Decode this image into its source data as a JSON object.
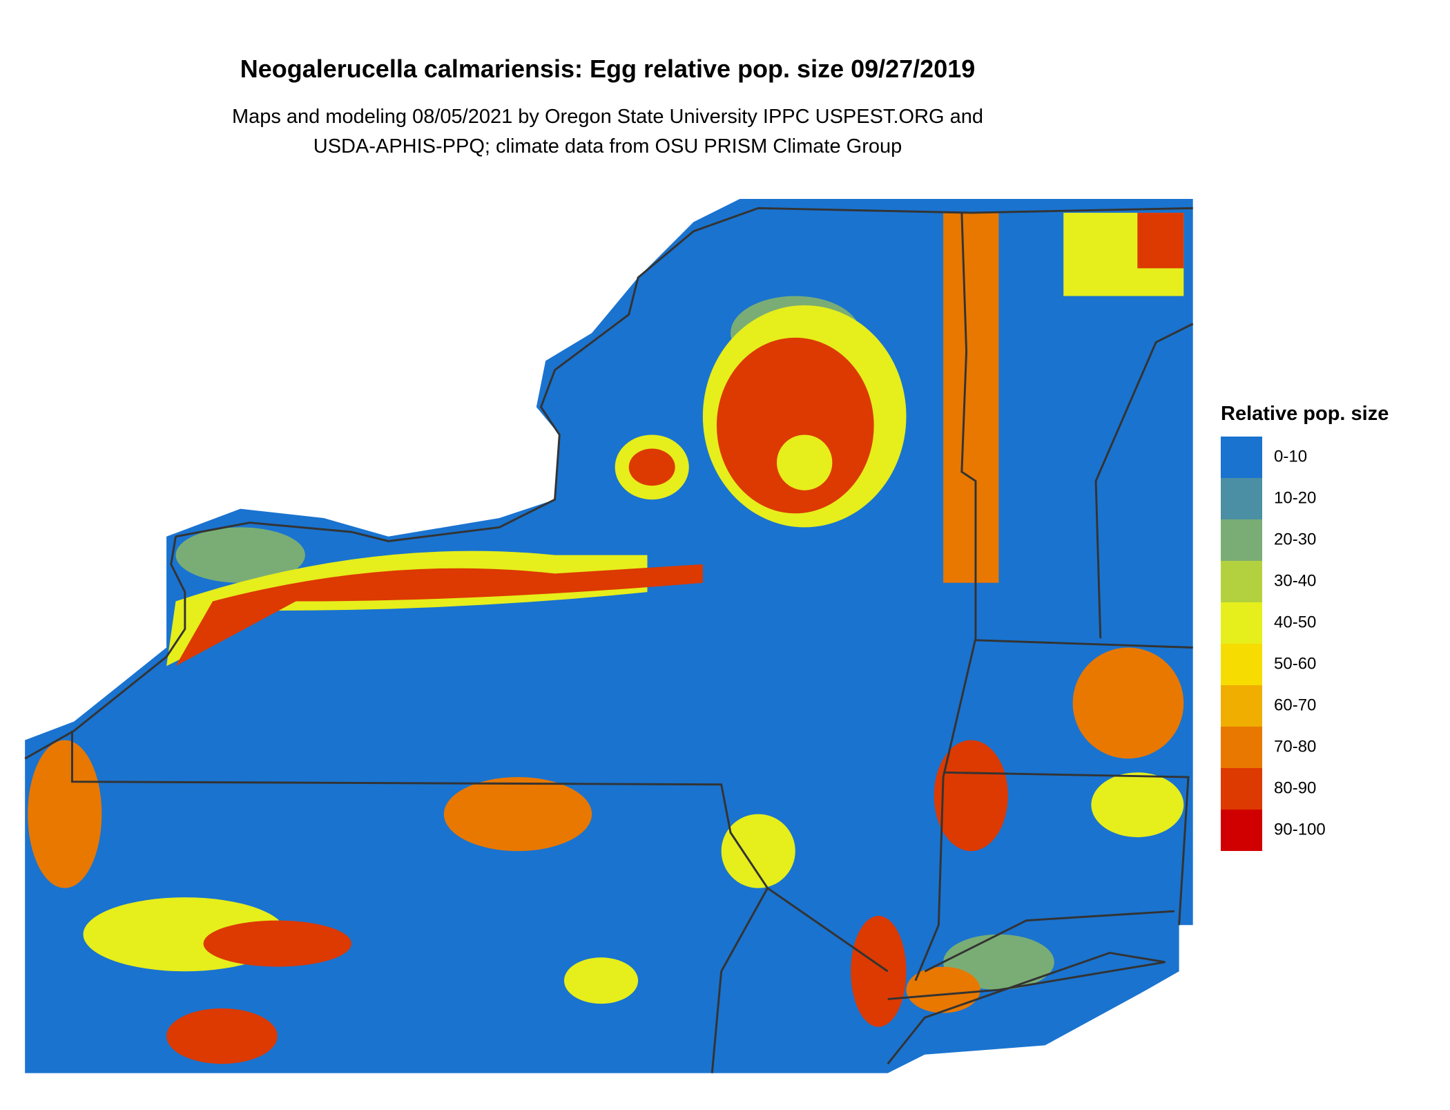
{
  "header": {
    "title": "Neogalerucella calmariensis: Egg relative pop. size 09/27/2019",
    "subtitle_lines": [
      "Maps and modeling 08/05/2021 by Oregon State University IPPC USPEST.ORG and",
      "USDA-APHIS-PPQ; climate data from OSU PRISM Climate Group"
    ]
  },
  "legend": {
    "title": "Relative pop. size",
    "items": [
      {
        "label": "0-10",
        "color": "#1a73cf"
      },
      {
        "label": "10-20",
        "color": "#4a8fa3"
      },
      {
        "label": "20-30",
        "color": "#7aad75"
      },
      {
        "label": "30-40",
        "color": "#b3d13f"
      },
      {
        "label": "40-50",
        "color": "#e6ee1c"
      },
      {
        "label": "50-60",
        "color": "#f6dc00"
      },
      {
        "label": "60-70",
        "color": "#f0ae00"
      },
      {
        "label": "70-80",
        "color": "#e87800"
      },
      {
        "label": "80-90",
        "color": "#dc3a00"
      },
      {
        "label": "90-100",
        "color": "#d10000"
      }
    ]
  }
}
